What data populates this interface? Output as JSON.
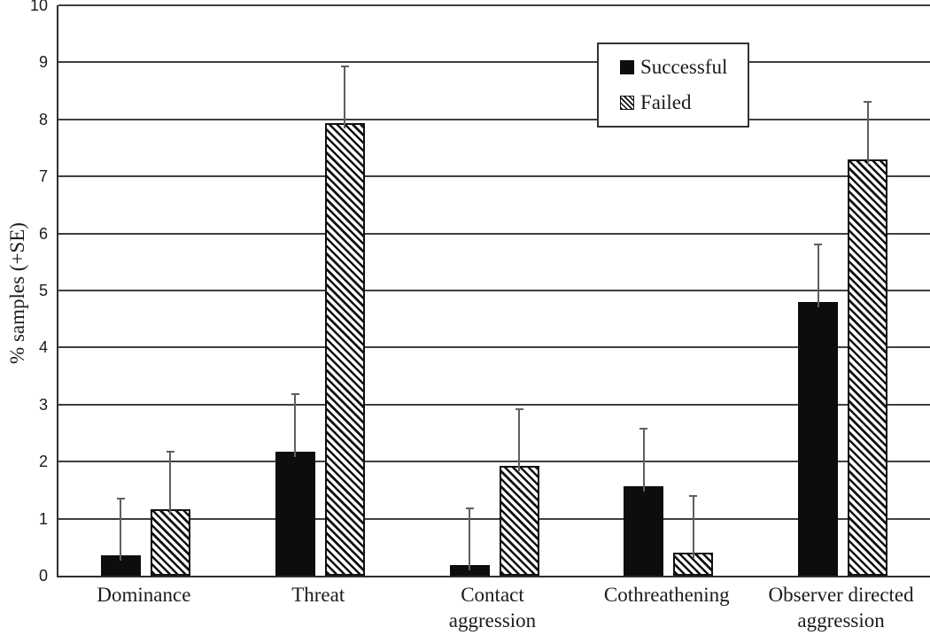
{
  "figure": {
    "background": "#ffffff"
  },
  "chart_data": {
    "type": "bar",
    "title": "",
    "xlabel": "",
    "ylabel": "% samples (+SE)",
    "ylim": [
      0,
      10
    ],
    "yticks": [
      0,
      1,
      2,
      3,
      4,
      5,
      6,
      7,
      8,
      9,
      10
    ],
    "grid": true,
    "legend": {
      "position": "top-center-inside",
      "entries": [
        "Successful",
        "Failed"
      ]
    },
    "categories": [
      "Dominance",
      "Threat",
      "Contact\naggression",
      "Cothreathening",
      "Observer directed\naggression"
    ],
    "series": [
      {
        "name": "Successful",
        "fill": "solid-black",
        "values": [
          0.35,
          2.18,
          0.18,
          1.57,
          4.8
        ],
        "se_plus": [
          1.0,
          1.0,
          1.0,
          1.0,
          1.0
        ]
      },
      {
        "name": "Failed",
        "fill": "diagonal-hatch",
        "values": [
          1.17,
          7.93,
          1.92,
          0.4,
          7.3
        ],
        "se_plus": [
          1.0,
          1.0,
          1.0,
          1.0,
          1.0
        ]
      }
    ]
  },
  "colors": {
    "bar": "#0d0d0d",
    "grid": "#3f3f3f",
    "axis": "#2e2e2e",
    "error_bar": "#5f5f5f",
    "text": "#1b1b1b",
    "legend_border": "#333333",
    "background": "#ffffff"
  }
}
